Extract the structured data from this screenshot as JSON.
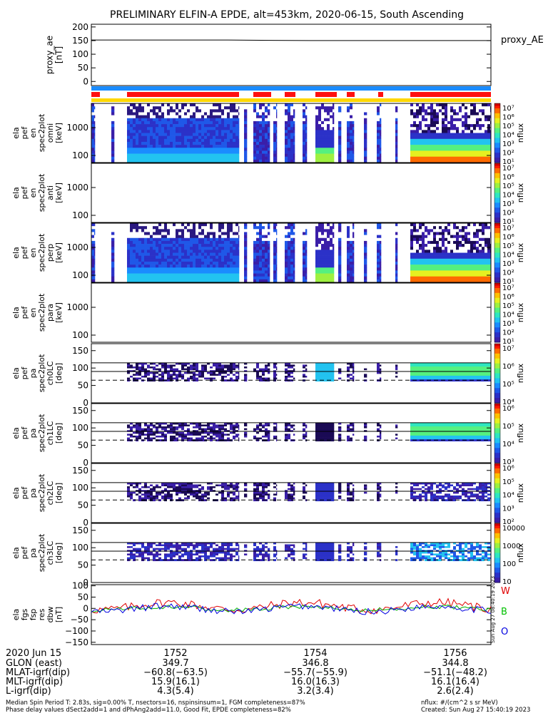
{
  "title": "PRELIMINARY ELFIN-A EPDE, alt=453km, 2020-06-15, South Ascending",
  "colors": {
    "bar_blue": "#1a8cff",
    "bar_red": "#ff1010",
    "bar_yellow": "#ffd700",
    "trace_black": "#000000",
    "trace_w": "#e00000",
    "trace_b": "#00b000",
    "trace_o": "#0000e0",
    "trace_b_label": "#00c000",
    "spec_purple": "#3a1ea8",
    "spec_dark": "#1a0a55"
  },
  "panels": {
    "ae": {
      "ylabel": "proxy_ae\n[nT]",
      "yticks": [
        "200",
        "150",
        "100",
        "50",
        "0"
      ],
      "legend": "proxy_AE"
    },
    "spec": [
      {
        "ylabel": "ela\npef\nen\nspec2plot\nomni\n[keV]",
        "yticks": [
          "1000",
          "100"
        ],
        "cbar_ticks": [
          "10⁷",
          "10⁶",
          "10⁵",
          "10⁴",
          "10³",
          "10²",
          "10¹"
        ],
        "cbar_label": "nflux"
      },
      {
        "ylabel": "ela\npef\nen\nspec2plot\nanti\n[keV]",
        "yticks": [
          "1000",
          "100"
        ],
        "cbar_ticks": [
          "10⁷",
          "10⁶",
          "10⁵",
          "10⁴",
          "10³",
          "10²",
          "10¹"
        ],
        "cbar_label": "nflux"
      },
      {
        "ylabel": "ela\npef\nen\nspec2plot\nperp\n[keV]",
        "yticks": [
          "1000",
          "100"
        ],
        "cbar_ticks": [
          "10⁷",
          "10⁶",
          "10⁵",
          "10⁴",
          "10³",
          "10²",
          "10¹"
        ],
        "cbar_label": "nflux"
      },
      {
        "ylabel": "ela\npef\nen\nspec2plot\npara\n[keV]",
        "yticks": [
          "1000",
          "100"
        ],
        "cbar_ticks": [
          "10⁷",
          "10⁶",
          "10⁵",
          "10⁴",
          "10³",
          "10²",
          "10¹"
        ],
        "cbar_label": "nflux"
      }
    ],
    "pa": [
      {
        "ylabel": "ela\npef\npa\nspec2plot\nch0LC\n[deg]",
        "yticks": [
          "150",
          "100",
          "50",
          "0"
        ],
        "cbar_ticks": [
          "10⁷",
          "10⁶",
          "10⁵",
          "10⁴"
        ],
        "cbar_label": "nflux"
      },
      {
        "ylabel": "ela\npef\npa\nspec2plot\nch1LC\n[deg]",
        "yticks": [
          "150",
          "100",
          "50",
          "0"
        ],
        "cbar_ticks": [
          "10⁶",
          "10⁵",
          "10⁴",
          "10³"
        ],
        "cbar_label": "nflux"
      },
      {
        "ylabel": "ela\npef\npa\nspec2plot\nch2LC\n[deg]",
        "yticks": [
          "150",
          "100",
          "50",
          "0"
        ],
        "cbar_ticks": [
          "10⁶",
          "10⁵",
          "10⁴",
          "10³",
          "10²"
        ],
        "cbar_label": "nflux"
      },
      {
        "ylabel": "ela\npef\npa\nspec2plot\nch3LC\n[deg]",
        "yticks": [
          "150",
          "100",
          "50",
          "0"
        ],
        "cbar_ticks": [
          "10000",
          "1000",
          "100",
          "10"
        ],
        "cbar_label": "nflux"
      }
    ],
    "fgm": {
      "ylabel": "ela\nfgs\nfsp\nres\ndbw\n[nT]",
      "yticks": [
        "100",
        "50",
        "0",
        "−50",
        "−100",
        "−150"
      ],
      "legend": [
        "W",
        "B",
        "O"
      ],
      "stamp": "Sun Aug 27 08:40:19 2023"
    }
  },
  "axis": {
    "date": "2020 Jun 15",
    "rows": [
      {
        "label": "GLON (east)",
        "values": [
          "349.7",
          "346.8",
          "344.8"
        ]
      },
      {
        "label": "MLAT-igrf(dip)",
        "values": [
          "−60.8(−63.5)",
          "−55.7(−55.9)",
          "−51.1(−48.2)"
        ]
      },
      {
        "label": "MLT-igrf(dip)",
        "values": [
          "15.9(16.1)",
          "16.0(16.3)",
          "16.1(16.4)"
        ]
      },
      {
        "label": "L-igrf(dip)",
        "values": [
          "4.3(5.4)",
          "3.2(3.4)",
          "2.6(2.4)"
        ]
      }
    ],
    "time_ticks": [
      "1752",
      "1754",
      "1756"
    ]
  },
  "footer": {
    "line1_left": "Median Spin Period T: 2.83s, sig=0.00% T, nsectors=16, nspinsinsum=1, FGM completeness=87%",
    "line2_left": "Phase delay values dSect2add=1 and dPhAng2add=11.0, Good Fit, EPDE completeness=82%",
    "line1_right": "nflux: #/(cm^2 s sr MeV)",
    "line2_right": "Created: Sun Aug 27 15:40:19 2023"
  },
  "chart_data": [
    {
      "type": "line",
      "name": "proxy_AE",
      "xlabel": "",
      "ylabel": "proxy_ae [nT]",
      "x_minutes": [
        0,
        5,
        8,
        10
      ],
      "values": [
        152,
        152,
        150,
        150
      ],
      "ylim": [
        -15,
        210
      ]
    },
    {
      "type": "heatmap",
      "title": "",
      "xlim_minutes": [
        0,
        10
      ],
      "data_intervals_minutes": [
        [
          0,
          0.05
        ],
        [
          0.35,
          0.4
        ],
        [
          0.55,
          0.8
        ],
        [
          1.1,
          4.5
        ],
        [
          4.9,
          5.0
        ],
        [
          5.2,
          5.9
        ],
        [
          6.3,
          6.6
        ],
        [
          7.1,
          7.8
        ],
        [
          8.2,
          8.5
        ],
        [
          8.8,
          8.9
        ],
        [
          9.3,
          9.4
        ],
        [
          10.6,
          11.2
        ],
        [
          11.4,
          11.5
        ],
        [
          11.9,
          12.0
        ],
        [
          12.8,
          14.6
        ]
      ],
      "units": "nflux: #/(cm^2 s sr MeV)"
    },
    {
      "type": "line",
      "title": "",
      "series": [
        {
          "name": "W",
          "color": "#e00000"
        },
        {
          "name": "B",
          "color": "#00b000"
        },
        {
          "name": "O",
          "color": "#0000e0"
        }
      ],
      "ylim": [
        -160,
        105
      ]
    }
  ]
}
